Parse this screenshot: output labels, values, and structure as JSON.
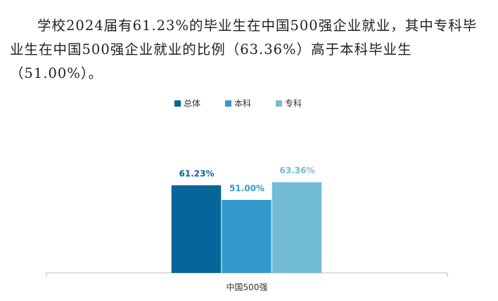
{
  "paragraph": "学校2024届有61.23%的毕业生在中国500强企业就业，其中专科毕业生在中国500强企业就业的比例（63.36%）高于本科毕业生（51.00%）。",
  "chart_data": {
    "type": "bar",
    "categories": [
      "中国500强"
    ],
    "series": [
      {
        "name": "总体",
        "color": "#066699",
        "values": [
          61.23
        ],
        "value_labels": [
          "61.23%"
        ]
      },
      {
        "name": "本科",
        "color": "#3399cc",
        "values": [
          51.0
        ],
        "value_labels": [
          "51.00%"
        ]
      },
      {
        "name": "专科",
        "color": "#73bcd6",
        "values": [
          63.36
        ],
        "value_labels": [
          "63.36%"
        ]
      }
    ],
    "ylim": [
      0,
      100
    ],
    "legend": "top"
  }
}
